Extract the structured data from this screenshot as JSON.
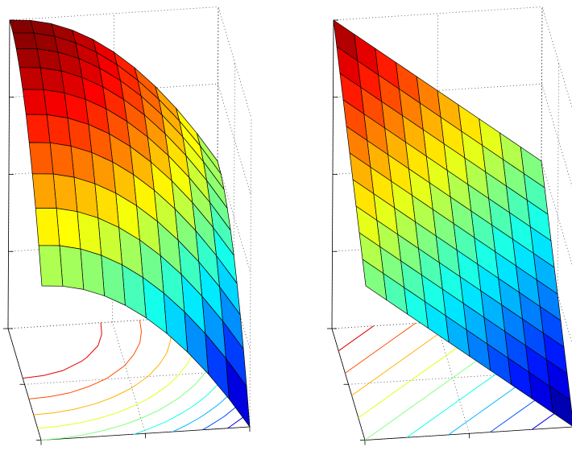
{
  "chart_data": [
    {
      "type": "surface",
      "colormap": "jet",
      "grid": true,
      "x": [
        0,
        0.1,
        0.2,
        0.3,
        0.4,
        0.5,
        0.6,
        0.7,
        0.8,
        0.9,
        1
      ],
      "y": [
        0,
        0.1,
        0.2,
        0.3,
        0.4,
        0.5,
        0.6,
        0.7,
        0.8,
        0.9,
        1
      ],
      "z": [
        [
          2,
          1.99,
          1.96,
          1.91,
          1.84,
          1.75,
          1.64,
          1.51,
          1.36,
          1.19,
          1
        ],
        [
          1.99,
          1.98,
          1.95,
          1.9,
          1.83,
          1.74,
          1.63,
          1.5,
          1.35,
          1.18,
          0.99
        ],
        [
          1.96,
          1.95,
          1.92,
          1.87,
          1.8,
          1.71,
          1.6,
          1.47,
          1.32,
          1.15,
          0.96
        ],
        [
          1.91,
          1.9,
          1.87,
          1.82,
          1.75,
          1.66,
          1.55,
          1.42,
          1.27,
          1.1,
          0.91
        ],
        [
          1.84,
          1.83,
          1.8,
          1.75,
          1.68,
          1.59,
          1.48,
          1.35,
          1.2,
          1.03,
          0.84
        ],
        [
          1.75,
          1.74,
          1.71,
          1.66,
          1.59,
          1.5,
          1.39,
          1.26,
          1.11,
          0.94,
          0.75
        ],
        [
          1.64,
          1.63,
          1.6,
          1.55,
          1.48,
          1.39,
          1.28,
          1.15,
          1,
          0.83,
          0.64
        ],
        [
          1.51,
          1.5,
          1.47,
          1.42,
          1.35,
          1.26,
          1.15,
          1.02,
          0.87,
          0.7,
          0.51
        ],
        [
          1.36,
          1.35,
          1.32,
          1.27,
          1.2,
          1.11,
          1,
          0.87,
          0.72,
          0.55,
          0.36
        ],
        [
          1.19,
          1.18,
          1.15,
          1.1,
          1.03,
          0.94,
          0.83,
          0.7,
          0.55,
          0.38,
          0.19
        ],
        [
          1,
          0.99,
          0.96,
          0.91,
          0.84,
          0.75,
          0.64,
          0.51,
          0.36,
          0.19,
          0
        ]
      ],
      "xlim": [
        0,
        1
      ],
      "ylim": [
        0,
        1
      ],
      "zlim": [
        0,
        2
      ],
      "xticks": [
        0,
        0.5,
        1
      ],
      "yticks": [
        0,
        0.5,
        1
      ],
      "zticks": [
        0,
        0.5,
        1,
        1.5,
        2
      ],
      "contour_levels": [
        0.2,
        0.4,
        0.6,
        0.8,
        1,
        1.2,
        1.4,
        1.6,
        1.8
      ]
    },
    {
      "type": "surface",
      "colormap": "jet",
      "grid": true,
      "x": [
        0,
        0.1,
        0.2,
        0.3,
        0.4,
        0.5,
        0.6,
        0.7,
        0.8,
        0.9,
        1
      ],
      "y": [
        0,
        0.1,
        0.2,
        0.3,
        0.4,
        0.5,
        0.6,
        0.7,
        0.8,
        0.9,
        1
      ],
      "z": [
        [
          2,
          1.9,
          1.8,
          1.7,
          1.6,
          1.5,
          1.4,
          1.3,
          1.2,
          1.1,
          1
        ],
        [
          1.9,
          1.8,
          1.7,
          1.6,
          1.5,
          1.4,
          1.3,
          1.2,
          1.1,
          1,
          0.9
        ],
        [
          1.8,
          1.7,
          1.6,
          1.5,
          1.4,
          1.3,
          1.2,
          1.1,
          1,
          0.9,
          0.8
        ],
        [
          1.7,
          1.6,
          1.5,
          1.4,
          1.3,
          1.2,
          1.1,
          1,
          0.9,
          0.8,
          0.7
        ],
        [
          1.6,
          1.5,
          1.4,
          1.3,
          1.2,
          1.1,
          1,
          0.9,
          0.8,
          0.7,
          0.6
        ],
        [
          1.5,
          1.4,
          1.3,
          1.2,
          1.1,
          1,
          0.9,
          0.8,
          0.7,
          0.6,
          0.5
        ],
        [
          1.4,
          1.3,
          1.2,
          1.1,
          1,
          0.9,
          0.8,
          0.7,
          0.6,
          0.5,
          0.4
        ],
        [
          1.3,
          1.2,
          1.1,
          1,
          0.9,
          0.8,
          0.7,
          0.6,
          0.5,
          0.4,
          0.3
        ],
        [
          1.2,
          1.1,
          1,
          0.9,
          0.8,
          0.7,
          0.6,
          0.5,
          0.4,
          0.3,
          0.2
        ],
        [
          1.1,
          1,
          0.9,
          0.8,
          0.7,
          0.6,
          0.5,
          0.4,
          0.3,
          0.2,
          0.1
        ],
        [
          1,
          0.9,
          0.8,
          0.7,
          0.6,
          0.5,
          0.4,
          0.3,
          0.2,
          0.1,
          0
        ]
      ],
      "xlim": [
        0,
        1
      ],
      "ylim": [
        0,
        1
      ],
      "zlim": [
        0,
        2
      ],
      "xticks": [
        0,
        0.5,
        1
      ],
      "yticks": [
        0,
        0.5,
        1
      ],
      "zticks": [
        0,
        0.5,
        1,
        1.5,
        2
      ],
      "contour_levels": [
        0.2,
        0.4,
        0.6,
        0.8,
        1,
        1.2,
        1.4,
        1.6,
        1.8
      ]
    }
  ]
}
